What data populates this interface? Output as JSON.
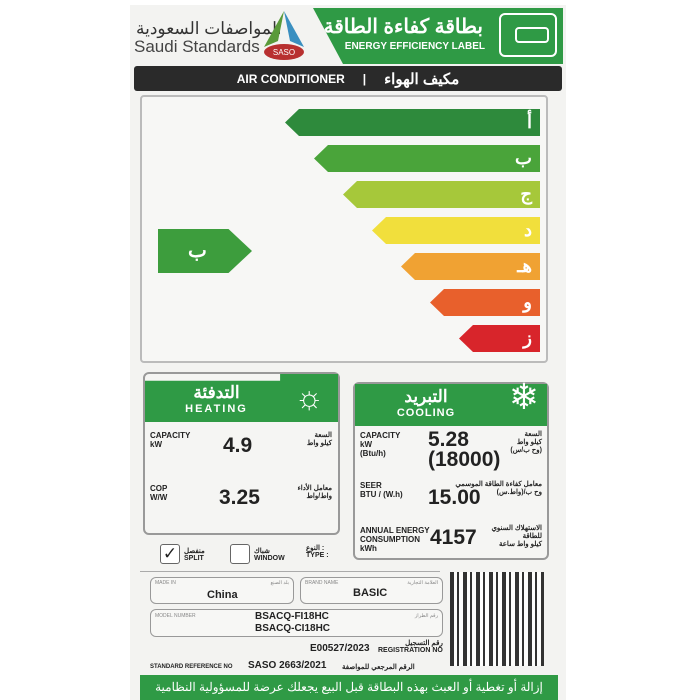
{
  "header": {
    "org_ar": "المواصفات السعودية",
    "org_en": "Saudi Standards",
    "logo_text": "SASO",
    "title_ar": "بطاقة كفاءة الطاقة",
    "title_en": "ENERGY EFFICIENCY LABEL",
    "icon": "air-conditioner-icon"
  },
  "product": {
    "en": "AIR CONDITIONER",
    "sep": "|",
    "ar": "مكيف الهواء"
  },
  "rating": {
    "classes": [
      {
        "letter": "أ",
        "color": "#2e8a3c"
      },
      {
        "letter": "ب",
        "color": "#4aa43a"
      },
      {
        "letter": "ج",
        "color": "#a6c83a"
      },
      {
        "letter": "د",
        "color": "#f1df3c"
      },
      {
        "letter": "هـ",
        "color": "#f0a233"
      },
      {
        "letter": "و",
        "color": "#e8602c"
      },
      {
        "letter": "ز",
        "color": "#d8252b"
      }
    ],
    "selected": "ب",
    "selected_index": 1
  },
  "heating": {
    "title_ar": "التدفئة",
    "title_en": "HEATING",
    "icon": "sun-icon",
    "capacity": {
      "label": "CAPACITY",
      "unit": "kW",
      "label_ar": "السعة",
      "unit_ar": "كيلو واط",
      "value": "4.9"
    },
    "cop": {
      "label": "COP",
      "unit": "W/W",
      "label_ar": "معامل الأداء",
      "unit_ar": "واط/واط",
      "value": "3.25"
    }
  },
  "cooling": {
    "title_ar": "التبريد",
    "title_en": "COOLING",
    "icon": "snowflake-icon",
    "capacity": {
      "label": "CAPACITY",
      "unit": "kW",
      "unit2": "(Btu/h)",
      "label_ar": "السعة",
      "unit_ar": "كيلو واط",
      "unit2_ar": "(وح ب/س)",
      "value": "5.28",
      "value2": "(18000)"
    },
    "seer": {
      "label": "SEER",
      "unit": "BTU / (W.h)",
      "label_ar": "معامل كفاءة الطاقة الموسمي",
      "unit_ar": "وح ب/(واط.س)",
      "value": "15.00"
    },
    "annual": {
      "label": "ANNUAL ENERGY CONSUMPTION",
      "unit": "kWh",
      "label_ar": "الاستهلاك السنوي للطاقة",
      "unit_ar": "كيلو واط ساعة",
      "value": "4157"
    }
  },
  "type": {
    "label_ar": "النوع :",
    "label_en": "TYPE :",
    "split_ar": "منفصل",
    "split_en": "SPLIT",
    "window_ar": "شباك",
    "window_en": "WINDOW",
    "split_checked": true,
    "window_checked": false
  },
  "info": {
    "made_in_label": "MADE IN",
    "made_in_label_ar": "بلد الصنع",
    "made_in": "China",
    "brand_label": "BRAND NAME",
    "brand_label_ar": "العلامة التجارية",
    "brand": "BASIC",
    "model_label": "MODEL NUMBER",
    "model_label_ar": "رقم الطراز",
    "model1": "BSACQ-FI18HC",
    "model2": "BSACQ-CI18HC",
    "reg_value": "E00527/2023",
    "reg_ar": "رقم التسجيل",
    "reg_en": "REGISTRATION NO",
    "std_en": "STANDARD REFERENCE NO",
    "std_value": "SASO 2663/2021",
    "std_ar": "الرقم المرجعي للمواصفة"
  },
  "footer": "إزالة أو تغطية أو العبث بهذه البطاقة قبل البيع يجعلك عرضة للمسؤولية النظامية"
}
